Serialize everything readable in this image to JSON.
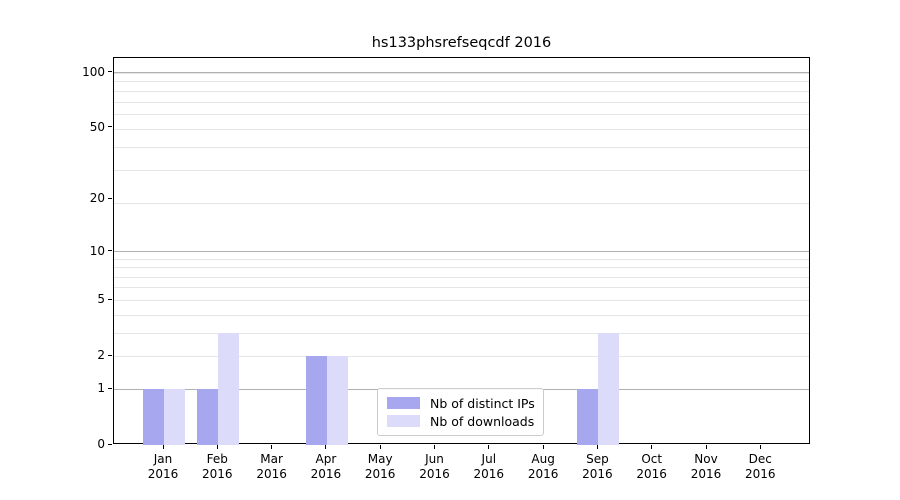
{
  "window": {
    "title": "hs133phsrefseqcdf 2016"
  },
  "chart_data": {
    "type": "bar",
    "title": "hs133phsrefseqcdf 2016",
    "categories": [
      "Jan 2016",
      "Feb 2016",
      "Mar 2016",
      "Apr 2016",
      "May 2016",
      "Jun 2016",
      "Jul 2016",
      "Aug 2016",
      "Sep 2016",
      "Oct 2016",
      "Nov 2016",
      "Dec 2016"
    ],
    "series": [
      {
        "name": "Nb of distinct IPs",
        "color": "#a7a7f0",
        "values": [
          1,
          1,
          0,
          2,
          0,
          0,
          0,
          0,
          1,
          0,
          0,
          0
        ]
      },
      {
        "name": "Nb of downloads",
        "color": "#dcdcfa",
        "values": [
          1,
          3,
          0,
          2,
          0,
          0,
          0,
          0,
          3,
          0,
          0,
          0
        ]
      }
    ],
    "xlabel": "",
    "ylabel": "",
    "y_scale": "log10(1+y)",
    "y_ticks": [
      0,
      1,
      2,
      5,
      10,
      20,
      50,
      100
    ],
    "ylim": [
      0,
      120
    ],
    "major_grid_values": [
      1,
      10,
      100
    ],
    "minor_grid_values": [
      2,
      3,
      4,
      5,
      6,
      7,
      8,
      9,
      19,
      29,
      39,
      49,
      59,
      69,
      79,
      89,
      99
    ],
    "grid": "on",
    "legend_position": "lower center",
    "colors": {
      "major_grid": "#b0b0b0",
      "minor_grid": "#e6e6e6",
      "axis": "#000000",
      "background": "#ffffff"
    }
  }
}
